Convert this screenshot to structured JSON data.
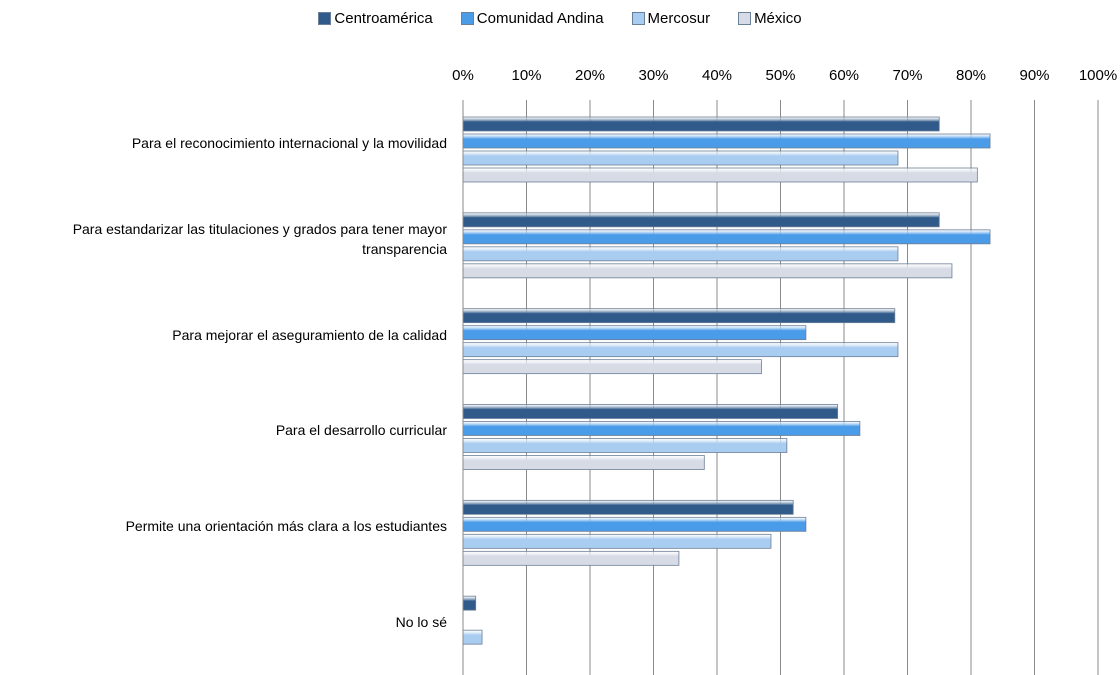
{
  "chart_data": {
    "type": "hbar",
    "categories": [
      "Para el reconocimiento internacional y la movilidad",
      "Para estandarizar las titulaciones y grados para tener mayor transparencia",
      "Para mejorar el aseguramiento de la calidad",
      "Para el desarrollo curricular",
      "Permite una orientación más clara a los estudiantes",
      "No lo sé"
    ],
    "series": [
      {
        "name": "Centroamérica",
        "color": "#2f5a8a",
        "values": [
          75,
          75,
          68,
          59,
          52,
          2
        ]
      },
      {
        "name": "Comunidad Andina",
        "color": "#4a9be8",
        "values": [
          83,
          83,
          54,
          62.5,
          54,
          null
        ]
      },
      {
        "name": "Mercosur",
        "color": "#a9cdf0",
        "values": [
          68.5,
          68.5,
          68.5,
          51,
          48.5,
          3
        ]
      },
      {
        "name": "México",
        "color": "#d6dbe6",
        "values": [
          81,
          77,
          47,
          38,
          34,
          null
        ]
      }
    ],
    "xlim": [
      0,
      100
    ],
    "xticks": [
      {
        "value": 0,
        "label": "0%"
      },
      {
        "value": 10,
        "label": "10%"
      },
      {
        "value": 20,
        "label": "20%"
      },
      {
        "value": 30,
        "label": "30%"
      },
      {
        "value": 40,
        "label": "40%"
      },
      {
        "value": 50,
        "label": "50%"
      },
      {
        "value": 60,
        "label": "60%"
      },
      {
        "value": 70,
        "label": "70%"
      },
      {
        "value": 80,
        "label": "80%"
      },
      {
        "value": 90,
        "label": "90%"
      },
      {
        "value": 100,
        "label": "100%"
      }
    ],
    "grid": true,
    "legend": "top"
  }
}
